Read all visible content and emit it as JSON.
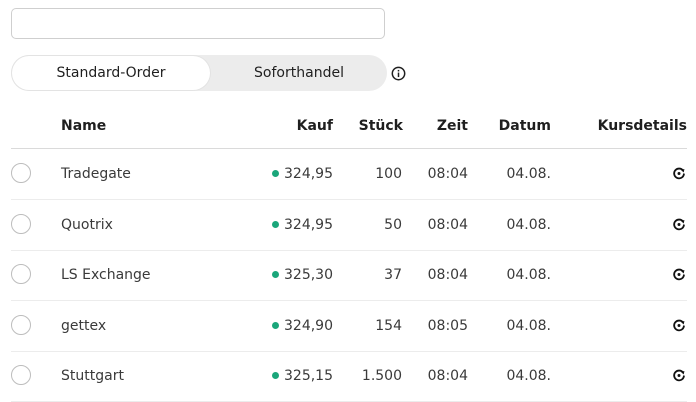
{
  "search": {
    "value": "",
    "placeholder": ""
  },
  "order_toggle": {
    "options": [
      "Standard-Order",
      "Soforthandel"
    ],
    "selected": "Standard-Order"
  },
  "info_icon": "info-circle-icon",
  "table": {
    "headers": [
      "Name",
      "Kauf",
      "Stück",
      "Zeit",
      "Datum",
      "Kursdetails"
    ],
    "rows": [
      {
        "name": "Tradegate",
        "kauf": "324,95",
        "stueck": "100",
        "zeit": "08:04",
        "datum": "04.08."
      },
      {
        "name": "Quotrix",
        "kauf": "324,95",
        "stueck": "50",
        "zeit": "08:04",
        "datum": "04.08."
      },
      {
        "name": "LS Exchange",
        "kauf": "325,30",
        "stueck": "37",
        "zeit": "08:04",
        "datum": "04.08."
      },
      {
        "name": "gettex",
        "kauf": "324,90",
        "stueck": "154",
        "zeit": "08:05",
        "datum": "04.08."
      },
      {
        "name": "Stuttgart",
        "kauf": "325,15",
        "stueck": "1.500",
        "zeit": "08:04",
        "datum": "04.08."
      }
    ],
    "price_indicator_color": "#1aa67a",
    "details_icon": "refresh-icon"
  }
}
